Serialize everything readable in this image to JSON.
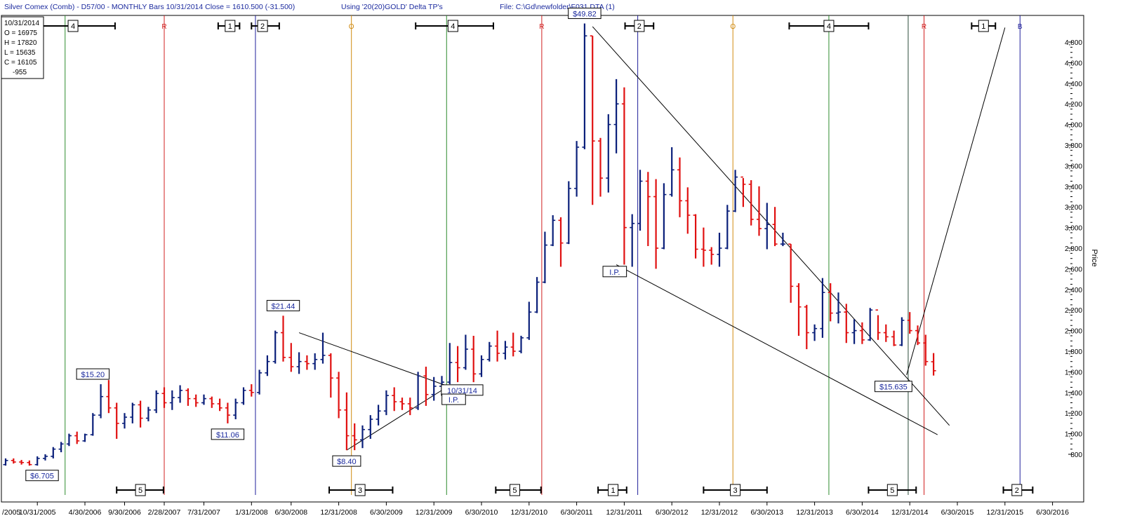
{
  "header": {
    "symbol": "Silver Comex (Comb) - D57/00  - MONTHLY Bars  10/31/2014 Close = 1610.500 (-31.500)",
    "tp_info": "Using '20(20)GOLD' Delta TP's",
    "file_info": "File: C:\\Gd\\newfolder\\F031.DTA (1)"
  },
  "ohlc_box": {
    "date": "10/31/2014",
    "open": "O = 16975",
    "high": "H = 17820",
    "low": "L = 15635",
    "close": "C = 16105",
    "change": "-955"
  },
  "colors": {
    "up_bar": "#0a1f7a",
    "down_bar": "#e01010",
    "label_text": "#1b2a9e",
    "green_line": "#2e8b2e",
    "red_line": "#d02020",
    "blue_line": "#20209a",
    "orange_line": "#d08a10"
  },
  "chart_data": {
    "type": "ohlc",
    "ylabel": "Price",
    "ylim": [
      650,
      5000
    ],
    "x_tick_labels": [
      "/2005",
      "10/31/2005",
      "4/30/2006",
      "9/30/2006",
      "2/28/2007",
      "7/31/2007",
      "1/31/2008",
      "6/30/2008",
      "12/31/2008",
      "6/30/2009",
      "12/31/2009",
      "6/30/2010",
      "12/31/2010",
      "6/30/2011",
      "12/31/2011",
      "6/30/2012",
      "12/31/2012",
      "6/30/2013",
      "12/31/2013",
      "6/30/2014",
      "12/31/2014",
      "6/30/2015",
      "12/31/2015",
      "6/30/2016"
    ],
    "x_tick_index": [
      -1,
      4,
      10,
      15,
      20,
      25,
      31,
      36,
      42,
      48,
      54,
      60,
      66,
      72,
      78,
      84,
      90,
      96,
      102,
      108,
      114,
      120,
      126,
      132
    ],
    "y_ticks": [
      800,
      1000,
      1200,
      1400,
      1600,
      1800,
      2000,
      2200,
      2400,
      2600,
      2800,
      3000,
      3200,
      3400,
      3600,
      3800,
      4000,
      4200,
      4400,
      4600,
      4800
    ],
    "y_tick_labels": [
      "800",
      "1,000",
      "1,200",
      "1,400",
      "1,600",
      "1,800",
      "2,000",
      "2,200",
      "2,400",
      "2,600",
      "2,800",
      "3,000",
      "3,200",
      "3,400",
      "3,600",
      "3,800",
      "4,000",
      "4,200",
      "4,400",
      "4,600",
      "4,800"
    ],
    "bars": [
      [
        700,
        760,
        690,
        740
      ],
      [
        740,
        760,
        710,
        725
      ],
      [
        725,
        745,
        700,
        720
      ],
      [
        720,
        740,
        690,
        700
      ],
      [
        700,
        780,
        690,
        760
      ],
      [
        760,
        800,
        740,
        780
      ],
      [
        780,
        870,
        760,
        850
      ],
      [
        850,
        920,
        820,
        900
      ],
      [
        900,
        1000,
        880,
        980
      ],
      [
        980,
        1020,
        900,
        930
      ],
      [
        930,
        1000,
        920,
        990
      ],
      [
        990,
        1200,
        980,
        1180
      ],
      [
        1180,
        1480,
        1150,
        1360
      ],
      [
        1360,
        1520,
        1200,
        1250
      ],
      [
        1250,
        1300,
        950,
        1100
      ],
      [
        1100,
        1200,
        1050,
        1160
      ],
      [
        1160,
        1300,
        1100,
        1280
      ],
      [
        1280,
        1320,
        1060,
        1150
      ],
      [
        1150,
        1260,
        1120,
        1230
      ],
      [
        1230,
        1420,
        1200,
        1390
      ],
      [
        1390,
        1450,
        1250,
        1300
      ],
      [
        1300,
        1420,
        1230,
        1350
      ],
      [
        1350,
        1470,
        1300,
        1420
      ],
      [
        1420,
        1440,
        1270,
        1340
      ],
      [
        1340,
        1380,
        1260,
        1300
      ],
      [
        1300,
        1380,
        1280,
        1340
      ],
      [
        1340,
        1360,
        1250,
        1290
      ],
      [
        1290,
        1340,
        1220,
        1250
      ],
      [
        1250,
        1300,
        1100,
        1180
      ],
      [
        1180,
        1340,
        1140,
        1300
      ],
      [
        1300,
        1450,
        1280,
        1420
      ],
      [
        1420,
        1480,
        1360,
        1400
      ],
      [
        1400,
        1620,
        1380,
        1590
      ],
      [
        1590,
        1760,
        1560,
        1700
      ],
      [
        1700,
        2000,
        1680,
        1980
      ],
      [
        1980,
        2144,
        1700,
        1740
      ],
      [
        1740,
        1880,
        1600,
        1650
      ],
      [
        1650,
        1790,
        1580,
        1700
      ],
      [
        1700,
        1760,
        1620,
        1680
      ],
      [
        1680,
        1780,
        1620,
        1720
      ],
      [
        1720,
        1980,
        1680,
        1760
      ],
      [
        1760,
        1780,
        1350,
        1540
      ],
      [
        1540,
        1600,
        1150,
        1230
      ],
      [
        1230,
        1400,
        840,
        980
      ],
      [
        980,
        1100,
        840,
        940
      ],
      [
        940,
        1080,
        860,
        1040
      ],
      [
        1040,
        1180,
        950,
        1140
      ],
      [
        1140,
        1280,
        1080,
        1220
      ],
      [
        1220,
        1420,
        1180,
        1370
      ],
      [
        1370,
        1450,
        1220,
        1310
      ],
      [
        1310,
        1350,
        1230,
        1290
      ],
      [
        1290,
        1350,
        1180,
        1250
      ],
      [
        1250,
        1600,
        1230,
        1560
      ],
      [
        1560,
        1650,
        1270,
        1380
      ],
      [
        1380,
        1550,
        1320,
        1460
      ],
      [
        1460,
        1560,
        1420,
        1500
      ],
      [
        1500,
        1880,
        1480,
        1690
      ],
      [
        1690,
        1850,
        1500,
        1640
      ],
      [
        1640,
        1960,
        1620,
        1820
      ],
      [
        1820,
        1950,
        1500,
        1580
      ],
      [
        1580,
        1760,
        1550,
        1720
      ],
      [
        1720,
        1890,
        1700,
        1850
      ],
      [
        1850,
        2000,
        1700,
        1780
      ],
      [
        1780,
        1900,
        1720,
        1840
      ],
      [
        1840,
        1980,
        1750,
        1800
      ],
      [
        1800,
        1950,
        1780,
        1930
      ],
      [
        1930,
        2280,
        1910,
        2180
      ],
      [
        2180,
        2520,
        2170,
        2470
      ],
      [
        2470,
        2960,
        2460,
        2830
      ],
      [
        2830,
        3120,
        2820,
        3070
      ],
      [
        3070,
        3100,
        2620,
        2850
      ],
      [
        2850,
        3450,
        2840,
        3380
      ],
      [
        3380,
        3840,
        3300,
        3780
      ],
      [
        3780,
        4980,
        3760,
        4860
      ],
      [
        4860,
        4860,
        3220,
        3840
      ],
      [
        3840,
        3870,
        3300,
        3480
      ],
      [
        3480,
        4100,
        3340,
        4000
      ],
      [
        4000,
        4440,
        3720,
        4200
      ],
      [
        4200,
        4360,
        2640,
        3000
      ],
      [
        3000,
        3130,
        2620,
        3040
      ],
      [
        3040,
        3560,
        2970,
        3450
      ],
      [
        3450,
        3540,
        2820,
        3300
      ],
      [
        3300,
        3470,
        2600,
        2800
      ],
      [
        2800,
        3430,
        2790,
        3320
      ],
      [
        3320,
        3780,
        3300,
        3560
      ],
      [
        3560,
        3680,
        3100,
        3260
      ],
      [
        3260,
        3390,
        2940,
        3120
      ],
      [
        3120,
        3130,
        2700,
        2790
      ],
      [
        2790,
        3000,
        2620,
        2780
      ],
      [
        2780,
        2810,
        2640,
        2740
      ],
      [
        2740,
        2950,
        2620,
        2800
      ],
      [
        2800,
        3220,
        2790,
        3160
      ],
      [
        3160,
        3560,
        3150,
        3490
      ],
      [
        3490,
        3480,
        3200,
        3420
      ],
      [
        3420,
        3460,
        3020,
        3080
      ],
      [
        3080,
        3400,
        2920,
        2990
      ],
      [
        2990,
        3240,
        2790,
        3030
      ],
      [
        3030,
        3200,
        2820,
        2840
      ],
      [
        2840,
        2950,
        2820,
        2840
      ],
      [
        2840,
        2840,
        2270,
        2430
      ],
      [
        2430,
        2460,
        1950,
        2230
      ],
      [
        2230,
        2250,
        1820,
        1980
      ],
      [
        1980,
        2060,
        1900,
        2020
      ],
      [
        2020,
        2510,
        1930,
        2370
      ],
      [
        2370,
        2460,
        2090,
        2170
      ],
      [
        2170,
        2370,
        2070,
        2180
      ],
      [
        2180,
        2260,
        1880,
        1980
      ],
      [
        1980,
        2110,
        1870,
        2000
      ],
      [
        2000,
        2080,
        1870,
        1910
      ],
      [
        1910,
        2220,
        1900,
        2200
      ],
      [
        2200,
        2150,
        1910,
        1980
      ],
      [
        1980,
        2060,
        1890,
        1940
      ],
      [
        1940,
        2000,
        1850,
        1860
      ],
      [
        1860,
        2130,
        1850,
        2100
      ],
      [
        2100,
        2180,
        1970,
        2000
      ],
      [
        2000,
        2050,
        1860,
        1880
      ],
      [
        1880,
        1960,
        1660,
        1700
      ],
      [
        1698,
        1782,
        1564,
        1611
      ]
    ],
    "price_labels": [
      {
        "text": "$6.705",
        "bar": 0,
        "price": 700
      },
      {
        "text": "$15.20",
        "bar": 11,
        "price": 1480
      },
      {
        "text": "$11.06",
        "bar": 28,
        "price": 1100
      },
      {
        "text": "$21.44",
        "bar": 35,
        "price": 2144
      },
      {
        "text": "$8.40",
        "bar": 43,
        "price": 840
      },
      {
        "text": "$49.82",
        "bar": 73,
        "price": 4980
      },
      {
        "text": "$15.635",
        "bar": 113,
        "price": 1564
      }
    ],
    "annotations": [
      {
        "text": "10/31/14",
        "x": 56.5,
        "price": 1420
      },
      {
        "text": "I.P.",
        "x": 56.5,
        "price": 1330
      },
      {
        "text": "I.P.",
        "x": 76.8,
        "price": 2570
      }
    ],
    "trendlines": [
      [
        [
          37,
          1980
        ],
        [
          55.8,
          1460
        ]
      ],
      [
        [
          43,
          840
        ],
        [
          55.8,
          1460
        ]
      ],
      [
        [
          74,
          4950
        ],
        [
          119,
          1080
        ]
      ],
      [
        [
          77,
          2640
        ],
        [
          117.5,
          990
        ]
      ],
      [
        [
          113.6,
          1570
        ],
        [
          126,
          4940
        ]
      ]
    ],
    "vertical_lines": [
      {
        "x": 7.5,
        "color": "green"
      },
      {
        "x": 20,
        "color": "red"
      },
      {
        "x": 31.5,
        "color": "blue"
      },
      {
        "x": 43.6,
        "color": "orange"
      },
      {
        "x": 55.6,
        "color": "green"
      },
      {
        "x": 67.6,
        "color": "red"
      },
      {
        "x": 79.7,
        "color": "blue"
      },
      {
        "x": 91.7,
        "color": "orange"
      },
      {
        "x": 103.8,
        "color": "green"
      },
      {
        "x": 113.8,
        "color": "dark"
      },
      {
        "x": 115.8,
        "color": "red"
      },
      {
        "x": 127.9,
        "color": "blue"
      }
    ],
    "top_labels": [
      {
        "text": "R",
        "x": 20,
        "color": "red"
      },
      {
        "text": "O",
        "x": 43.6,
        "color": "orange"
      },
      {
        "text": "R",
        "x": 67.6,
        "color": "red"
      },
      {
        "text": "O",
        "x": 91.7,
        "color": "orange"
      },
      {
        "text": "R",
        "x": 115.8,
        "color": "red"
      },
      {
        "text": "B",
        "x": 127.9,
        "color": "blue"
      }
    ],
    "top_markers": [
      {
        "label": "4",
        "x1": -1,
        "x2": 13.8,
        "box": 8.5
      },
      {
        "label": "1",
        "x1": 26.8,
        "x2": 29.5,
        "box": 28.3
      },
      {
        "label": "2",
        "x1": 31,
        "x2": 34.5,
        "box": 32.4
      },
      {
        "label": "4",
        "x1": 51.7,
        "x2": 61.5,
        "box": 56.4
      },
      {
        "label": "2",
        "x1": 78.1,
        "x2": 81.7,
        "box": 79.9
      },
      {
        "label": "4",
        "x1": 98.8,
        "x2": 108.8,
        "box": 103.8
      },
      {
        "label": "1",
        "x1": 121.8,
        "x2": 124.8,
        "box": 123.3
      }
    ],
    "bottom_markers": [
      {
        "label": "5",
        "x1": 14,
        "x2": 19.9,
        "box": 17
      },
      {
        "label": "3",
        "x1": 40.8,
        "x2": 48.8,
        "box": 44.7
      },
      {
        "label": "5",
        "x1": 61.8,
        "x2": 67.5,
        "box": 64.2
      },
      {
        "label": "1",
        "x1": 74.7,
        "x2": 78.3,
        "box": 76.6
      },
      {
        "label": "3",
        "x1": 88,
        "x2": 96,
        "box": 92
      },
      {
        "label": "5",
        "x1": 108.8,
        "x2": 114.8,
        "box": 111.8
      },
      {
        "label": "2",
        "x1": 125.8,
        "x2": 129.5,
        "box": 127.5
      }
    ]
  }
}
